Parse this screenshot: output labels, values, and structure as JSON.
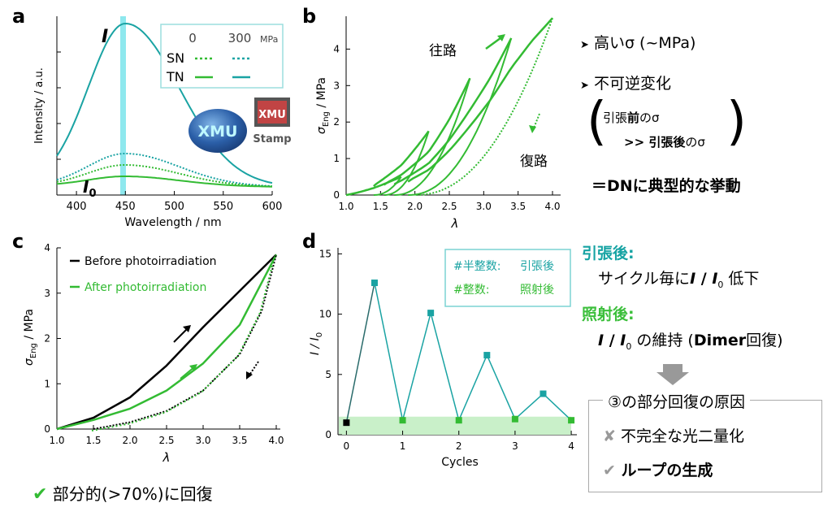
{
  "panels": {
    "a": "a",
    "b": "b",
    "c": "c",
    "d": "d"
  },
  "colors": {
    "green": "#33bb33",
    "teal": "#1aa3a3",
    "cyan_band": "#8ee8ee",
    "black": "#000000",
    "band": "#c9f0c9"
  },
  "chart_data": [
    {
      "type": "line",
      "panel": "a",
      "xlabel": "Wavelength / nm",
      "ylabel": "Intensity / a.u.",
      "xticks": [
        "400",
        "450",
        "500",
        "550",
        "600"
      ],
      "xlim": [
        380,
        600
      ],
      "annotations": {
        "top": "I",
        "bottom": "I",
        "bottom_sub": "0"
      },
      "legend": {
        "header_0": "0",
        "header_300": "300",
        "unit": "MPa",
        "rows": [
          "SN",
          "TN"
        ]
      },
      "stamp": {
        "logo_text": "XMU",
        "label": "Stamp"
      },
      "series": [
        {
          "name": "TN 0 MPa",
          "peak": 450,
          "peak_value": 1.0
        },
        {
          "name": "SN 300 MPa",
          "peak": 450,
          "peak_value": 0.2
        },
        {
          "name": "SN 0 MPa",
          "peak": 450,
          "peak_value": 0.13
        },
        {
          "name": "TN 300 MPa",
          "peak": 450,
          "peak_value": 0.06
        }
      ]
    },
    {
      "type": "line",
      "panel": "b",
      "xlabel": "λ",
      "ylabel": "σ",
      "ylabel_sub": "Eng",
      "ylabel_unit": " / MPa",
      "xticks": [
        "1.0",
        "1.5",
        "2.0",
        "2.5",
        "3.0",
        "3.5",
        "4.0"
      ],
      "yticks": [
        "0",
        "1",
        "2",
        "3",
        "4"
      ],
      "xlim": [
        1.0,
        4.0
      ],
      "ylim": [
        0,
        4.9
      ],
      "annotations": {
        "forward": "往路",
        "backward": "復路"
      },
      "loading_path": [
        [
          1.0,
          0
        ],
        [
          1.4,
          0.25
        ],
        [
          1.8,
          0.55
        ],
        [
          2.2,
          1.0
        ],
        [
          2.5,
          1.6
        ],
        [
          2.8,
          2.3
        ],
        [
          3.1,
          3.0
        ],
        [
          3.4,
          3.8
        ],
        [
          3.7,
          4.4
        ],
        [
          4.0,
          4.85
        ]
      ],
      "cycles": [
        {
          "max_x": 1.8,
          "max_y": 0.5,
          "unload_end": 1.4
        },
        {
          "max_x": 2.2,
          "max_y": 1.75,
          "unload_end": 1.55
        },
        {
          "max_x": 2.8,
          "max_y": 3.2,
          "unload_end": 1.7
        },
        {
          "max_x": 3.4,
          "max_y": 4.3,
          "unload_end": 1.9
        },
        {
          "max_x": 4.0,
          "max_y": 4.85,
          "unload_end": 2.0
        }
      ]
    },
    {
      "type": "line",
      "panel": "c",
      "xlabel": "λ",
      "ylabel": "σ",
      "ylabel_sub": "Eng",
      "ylabel_unit": " / MPa",
      "xticks": [
        "1.0",
        "1.5",
        "2.0",
        "2.5",
        "3.0",
        "3.5",
        "4.0"
      ],
      "yticks": [
        "0",
        "1",
        "2",
        "3",
        "4"
      ],
      "xlim": [
        1.0,
        4.0
      ],
      "ylim": [
        0,
        4.0
      ],
      "legend": [
        "Before photoirradiation",
        "After photoirradiation"
      ],
      "series": [
        {
          "name": "Before photoirradiation",
          "x": [
            1.0,
            1.5,
            2.0,
            2.5,
            3.0,
            3.5,
            4.0
          ],
          "y": [
            0,
            0.25,
            0.7,
            1.4,
            2.25,
            3.05,
            3.85
          ]
        },
        {
          "name": "After photoirradiation",
          "x": [
            1.0,
            1.5,
            2.0,
            2.5,
            3.0,
            3.5,
            4.0
          ],
          "y": [
            0,
            0.2,
            0.45,
            0.85,
            1.45,
            2.3,
            3.85
          ]
        },
        {
          "name": "unloading",
          "x": [
            1.5,
            2.0,
            2.5,
            3.0,
            3.5,
            3.8,
            4.0
          ],
          "y": [
            0,
            0.15,
            0.4,
            0.85,
            1.65,
            2.6,
            3.85
          ]
        }
      ]
    },
    {
      "type": "line",
      "panel": "d",
      "xlabel": "Cycles",
      "ylabel": "I / I",
      "ylabel_sub": "0",
      "xticks": [
        "0",
        "1",
        "2",
        "3",
        "4"
      ],
      "yticks": [
        "0",
        "5",
        "10",
        "15"
      ],
      "xlim": [
        -0.15,
        4.1
      ],
      "ylim": [
        0,
        15.5
      ],
      "legend": [
        {
          "tag": "#半整数:",
          "value": "引張後"
        },
        {
          "tag": "#整数:",
          "value": "照射後"
        }
      ],
      "band": [
        0.0,
        1.5
      ],
      "x": [
        0,
        0.5,
        1,
        1.5,
        2,
        2.5,
        3,
        3.5,
        4
      ],
      "y": [
        1.0,
        12.6,
        1.2,
        10.1,
        1.2,
        6.6,
        1.3,
        3.4,
        1.2
      ]
    }
  ],
  "right_b": {
    "bullet1": "高いσ (~MPa)",
    "bullet2": "不可逆変化",
    "line1_pre": "引張",
    "line1_bold": "前",
    "line1_post": "のσ",
    "line2_pre": ">> 引張",
    "line2_bold": "後",
    "line2_post": "のσ",
    "conclusion": "＝DNに典型的な挙動"
  },
  "right_d": {
    "title1": "引張後:",
    "line1_pre": "サイクル毎に",
    "line1_I": "I",
    "line1_slash": " / ",
    "line1_I0": "I",
    "line1_sub": "0",
    "line1_post": " 低下",
    "title2": "照射後:",
    "line2_I": "I",
    "line2_slash": " / ",
    "line2_I0": "I",
    "line2_sub": "0",
    "line2_mid": " の維持 (",
    "line2_bold": "Dimer",
    "line2_post": "回復)",
    "box_title": "③の部分回復の原因",
    "box_item1": "不完全な光二量化",
    "box_item2": "ループの生成"
  },
  "bottom_note": "部分的(>70%)に回復",
  "icons": {
    "cross": "✘",
    "check": "✔"
  }
}
